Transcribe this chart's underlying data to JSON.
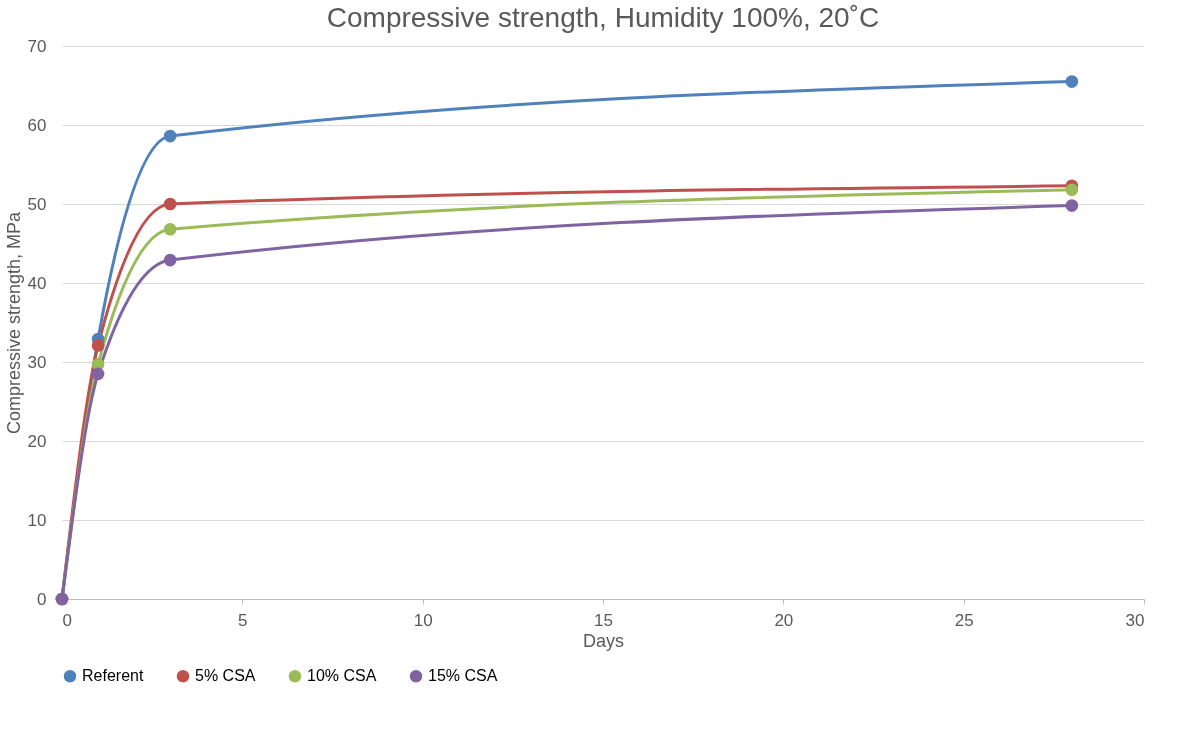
{
  "chart_data": {
    "type": "line",
    "title": "Compressive strength, Humidity 100%, 20˚C",
    "xlabel": "Days",
    "ylabel": "Compressive strength, MPa",
    "x": [
      0,
      1,
      3,
      28
    ],
    "series": [
      {
        "name": "Referent",
        "color": "#4f81bd",
        "values": [
          0,
          32.9,
          58.6,
          65.5
        ]
      },
      {
        "name": "5% CSA",
        "color": "#c0504d",
        "values": [
          0,
          32.1,
          50.0,
          52.3
        ]
      },
      {
        "name": "10% CSA",
        "color": "#9bbb59",
        "values": [
          0,
          29.7,
          46.8,
          51.8
        ]
      },
      {
        "name": "15% CSA",
        "color": "#8064a2",
        "values": [
          0,
          28.5,
          42.9,
          49.8
        ]
      }
    ],
    "xlim": [
      0,
      30
    ],
    "xticks": [
      0,
      5,
      10,
      15,
      20,
      25,
      30
    ],
    "ylim": [
      0,
      70
    ],
    "yticks": [
      0,
      10,
      20,
      30,
      40,
      50,
      60,
      70
    ],
    "grid": "y",
    "legend": "bottom",
    "marker": "circle",
    "line_style": "solid"
  }
}
